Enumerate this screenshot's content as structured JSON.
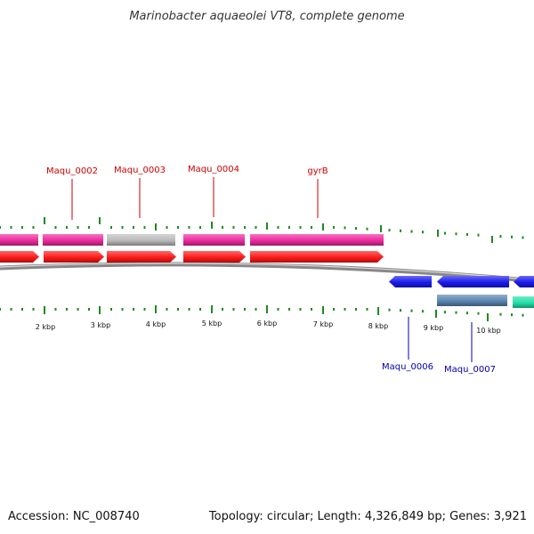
{
  "title": "Marinobacter aquaeolei VT8, complete genome",
  "footer": {
    "accession": "Accession: NC_008740",
    "topology": "Topology: circular; Length: 4,326,849 bp; Genes: 3,921"
  },
  "colors": {
    "cds_forward": "#ff1a1a",
    "cds_reverse": "#1a1aee",
    "gene_forward": "#ee2a9e",
    "gene_forward_grey": "#bbbbbb",
    "gene_reverse": "#5a86b0",
    "gene_teal": "#22e0a8",
    "backbone": "#888888",
    "ticks": "#1e8a1e",
    "label_forward": "#cc0000",
    "label_reverse": "#0000aa"
  },
  "scale": {
    "labels": [
      "2 kbp",
      "3 kbp",
      "4 kbp",
      "5 kbp",
      "6 kbp",
      "7 kbp",
      "8 kbp",
      "9 kbp",
      "10 kbp"
    ]
  },
  "gene_labels": [
    {
      "text": "Maqu_0002",
      "strand": "forward"
    },
    {
      "text": "Maqu_0003",
      "strand": "forward"
    },
    {
      "text": "Maqu_0004",
      "strand": "forward"
    },
    {
      "text": "gyrB",
      "strand": "forward"
    },
    {
      "text": "Maqu_0006",
      "strand": "reverse"
    },
    {
      "text": "Maqu_0007",
      "strand": "reverse"
    }
  ]
}
